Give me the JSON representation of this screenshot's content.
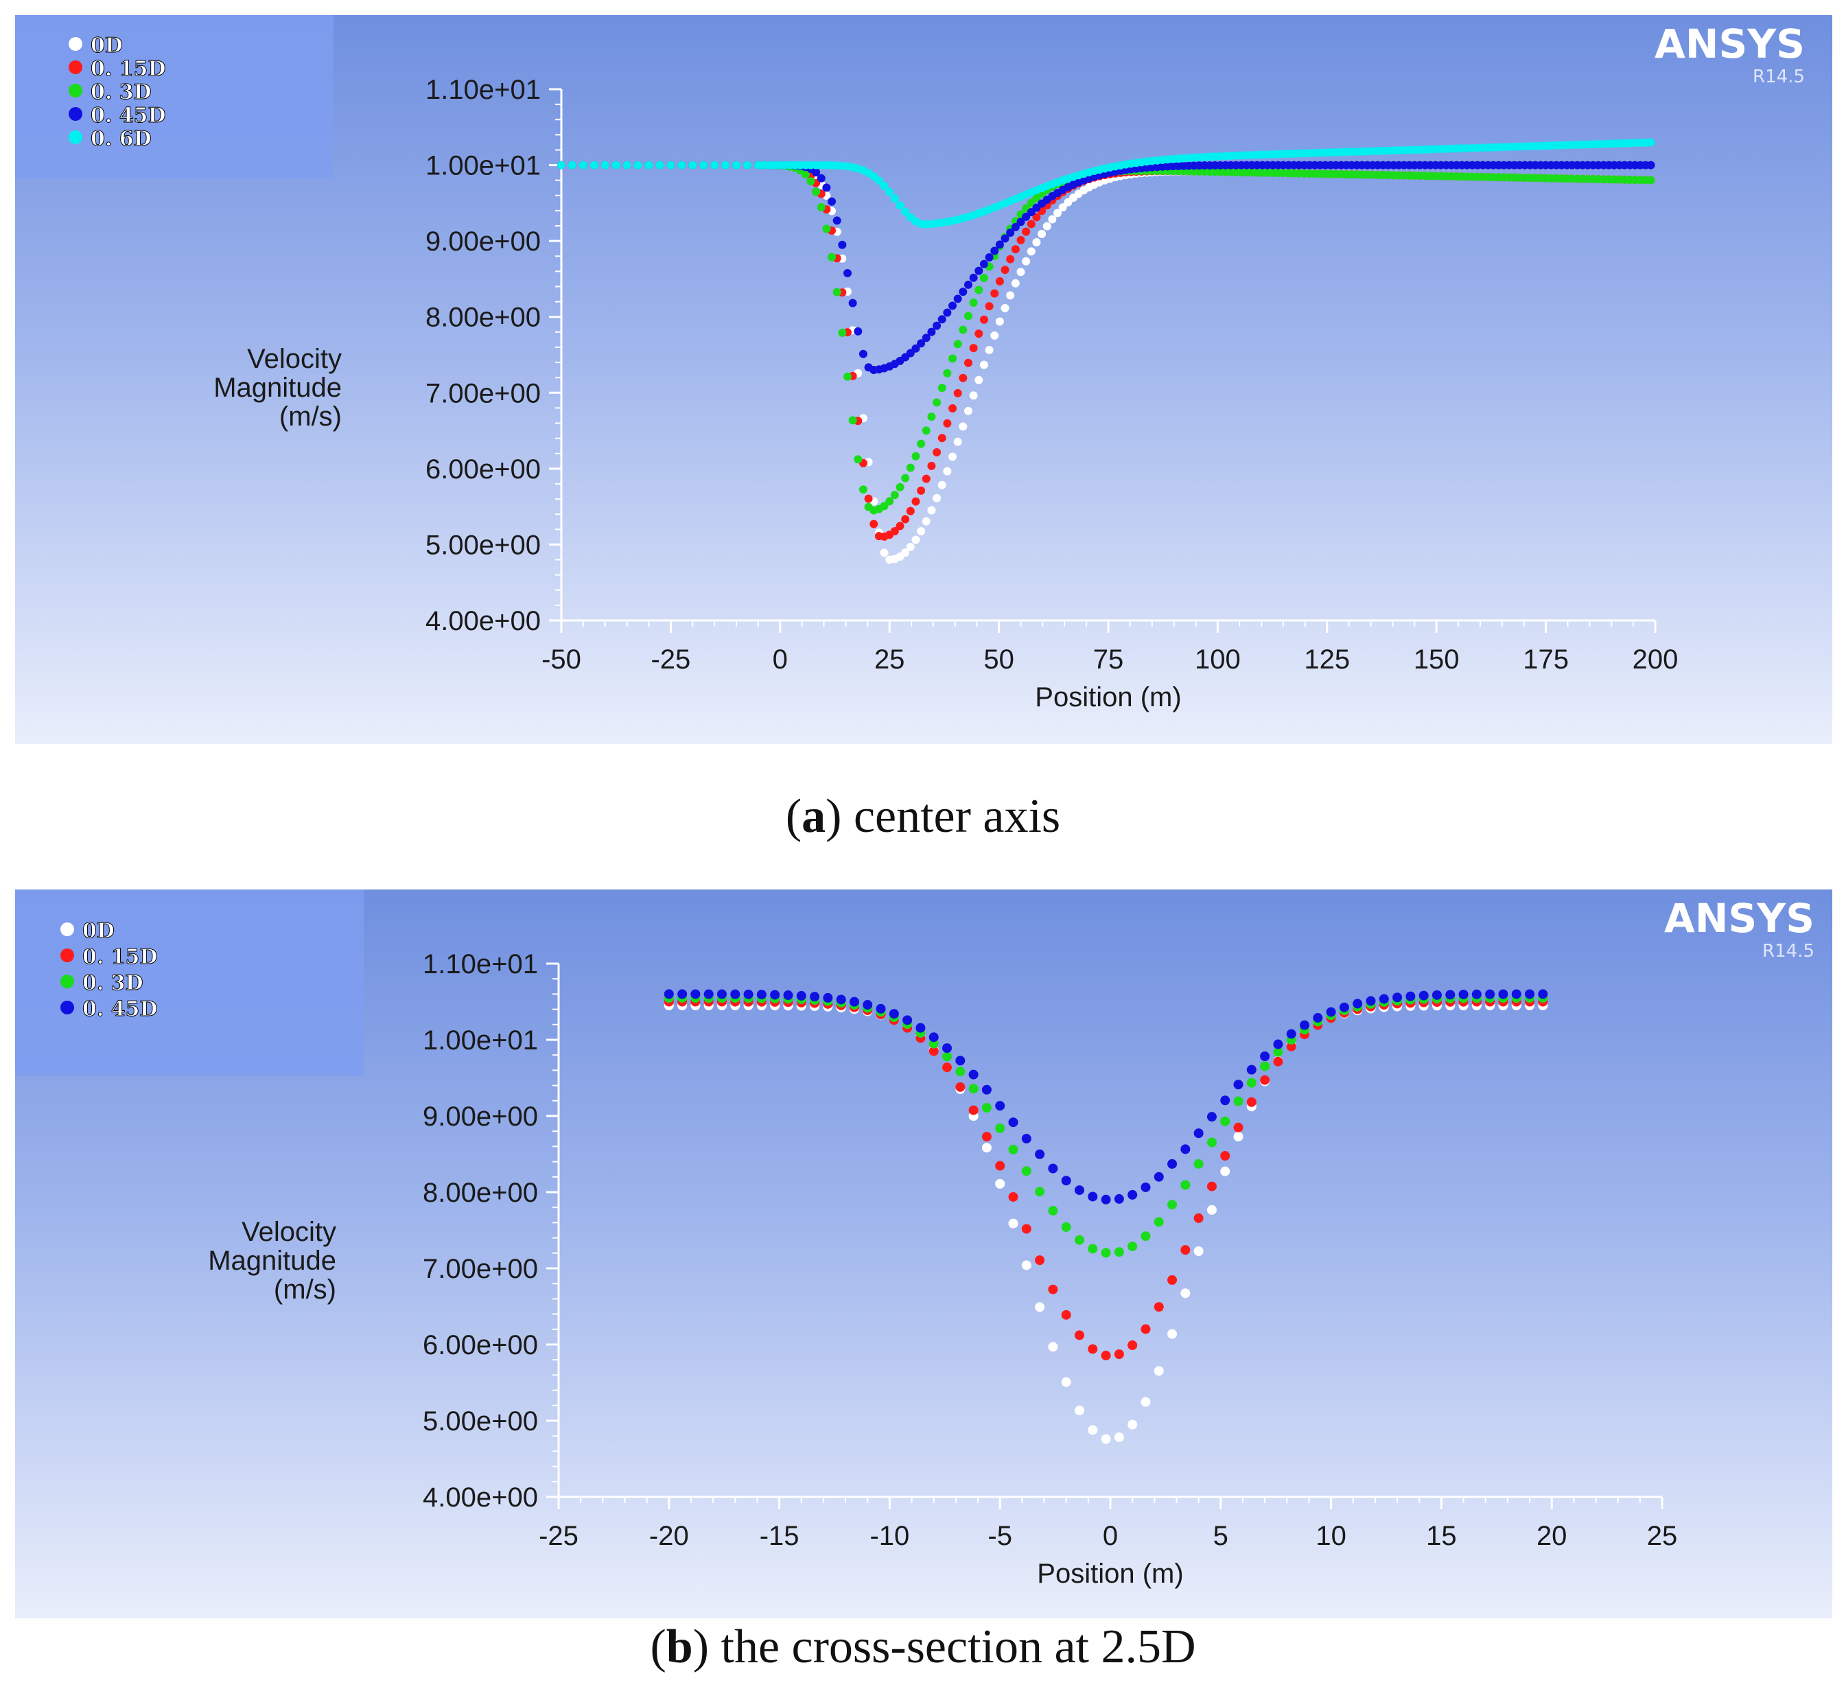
{
  "chart_data": [
    {
      "type": "scatter",
      "brand": "ANSYS",
      "version": "R14.5",
      "ylabel_lines": [
        "Velocity",
        "Magnitude",
        "(m/s)"
      ],
      "xlabel": "Position (m)",
      "xlim": [
        -50,
        200
      ],
      "ylim": [
        4,
        11
      ],
      "xticks": [
        -50,
        -25,
        0,
        25,
        50,
        75,
        100,
        125,
        150,
        175,
        200
      ],
      "xtick_labels": [
        "-50",
        "-25",
        "0",
        "25",
        "50",
        "75",
        "100",
        "125",
        "150",
        "175",
        "200"
      ],
      "yticks": [
        4,
        5,
        6,
        7,
        8,
        9,
        10,
        11
      ],
      "ytick_labels": [
        "4.00e+00",
        "5.00e+00",
        "6.00e+00",
        "7.00e+00",
        "8.00e+00",
        "9.00e+00",
        "1.00e+01",
        "1.10e+01"
      ],
      "legend_position": "top-left",
      "caption_letter": "a",
      "caption_text": " center axis",
      "series": [
        {
          "name": "0D",
          "color": "#ffffff",
          "base": 10,
          "x_start": -5,
          "dip_depth": 5.2,
          "x_min": 25,
          "sigma_left": 9,
          "sigma_right": 26,
          "ramp_end": 200,
          "ramp_gain": -0.2,
          "pre_points": [
            [
              -50,
              10
            ],
            [
              -25,
              10
            ],
            [
              -10,
              10
            ],
            [
              0,
              10
            ]
          ]
        },
        {
          "name": "0. 15D",
          "color": "#ff1a1a",
          "base": 10,
          "x_start": -5,
          "dip_depth": 4.9,
          "x_min": 23,
          "sigma_left": 8.5,
          "sigma_right": 25,
          "ramp_end": 200,
          "ramp_gain": -0.2,
          "pre_points": [
            [
              -50,
              10
            ],
            [
              -25,
              10
            ],
            [
              -10,
              10
            ],
            [
              0,
              10
            ]
          ]
        },
        {
          "name": "0. 3D",
          "color": "#1adc1a",
          "base": 10,
          "x_start": -5,
          "dip_depth": 4.55,
          "x_min": 21,
          "sigma_left": 8,
          "sigma_right": 24,
          "ramp_end": 200,
          "ramp_gain": -0.2,
          "pre_points": [
            [
              -50,
              10
            ],
            [
              -25,
              10
            ],
            [
              -10,
              10
            ],
            [
              0,
              10
            ]
          ]
        },
        {
          "name": "0. 45D",
          "color": "#1010e0",
          "base": 10,
          "x_start": -5,
          "dip_depth": 2.7,
          "x_min": 21,
          "sigma_left": 7,
          "sigma_right": 30,
          "ramp_end": 200,
          "ramp_gain": 0.0,
          "pre_points": [
            [
              -50,
              10
            ],
            [
              -25,
              10
            ],
            [
              -10,
              10
            ],
            [
              0,
              10
            ]
          ]
        },
        {
          "name": "0. 6D",
          "color": "#00f0f0",
          "base": 10,
          "x_start": -5,
          "dip_depth": 0.78,
          "x_min": 33,
          "sigma_left": 9,
          "sigma_right": 30,
          "ramp_end": 200,
          "ramp_gain": 0.3,
          "pre_points": [
            [
              -50,
              10
            ],
            [
              -25,
              10
            ],
            [
              -10,
              10
            ],
            [
              0,
              10
            ]
          ]
        }
      ]
    },
    {
      "type": "scatter",
      "brand": "ANSYS",
      "version": "R14.5",
      "ylabel_lines": [
        "Velocity",
        "Magnitude",
        "(m/s)"
      ],
      "xlabel": "Position (m)",
      "xlim": [
        -25,
        25
      ],
      "ylim": [
        4,
        11
      ],
      "xticks": [
        -25,
        -20,
        -15,
        -10,
        -5,
        0,
        5,
        10,
        15,
        20,
        25
      ],
      "xtick_labels": [
        "-25",
        "-20",
        "-15",
        "-10",
        "-5",
        "0",
        "5",
        "10",
        "15",
        "20",
        "25"
      ],
      "yticks": [
        4,
        5,
        6,
        7,
        8,
        9,
        10,
        11
      ],
      "ytick_labels": [
        "4.00e+00",
        "5.00e+00",
        "6.00e+00",
        "7.00e+00",
        "8.00e+00",
        "9.00e+00",
        "1.00e+01",
        "1.10e+01"
      ],
      "legend_position": "top-left",
      "caption_letter": "b",
      "caption_text": " the cross-section at 2.5D",
      "series": [
        {
          "name": "0D",
          "color": "#ffffff",
          "outer": 10.45,
          "min": 4.75,
          "width": 5.3
        },
        {
          "name": "0. 15D",
          "color": "#ff1a1a",
          "outer": 10.5,
          "min": 5.85,
          "width": 5.7
        },
        {
          "name": "0. 3D",
          "color": "#1adc1a",
          "outer": 10.55,
          "min": 7.2,
          "width": 6.1
        },
        {
          "name": "0. 45D",
          "color": "#1010e0",
          "outer": 10.6,
          "min": 7.9,
          "width": 6.4
        }
      ]
    }
  ]
}
